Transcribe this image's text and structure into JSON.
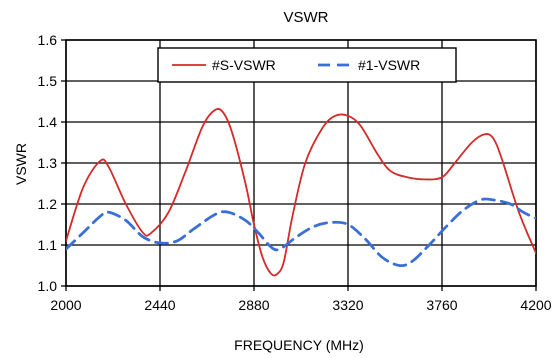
{
  "chart_data": {
    "type": "line",
    "title": "VSWR",
    "xlabel": "FREQUENCY (MHz)",
    "ylabel": "VSWR",
    "xlim": [
      2000,
      4200
    ],
    "ylim": [
      1.0,
      1.6
    ],
    "x_ticks": [
      "2000",
      "2440",
      "2880",
      "3320",
      "3760",
      "4200"
    ],
    "y_ticks": [
      "1.0",
      "1.1",
      "1.2",
      "1.3",
      "1.4",
      "1.5",
      "1.6"
    ],
    "x_tick_values": [
      2000,
      2440,
      2880,
      3320,
      3760,
      4200
    ],
    "y_tick_values": [
      1.0,
      1.1,
      1.2,
      1.3,
      1.4,
      1.5,
      1.6
    ],
    "grid": true,
    "legend_position": "top-center",
    "series": [
      {
        "name": "#S-VSWR",
        "color": "#d42a2a",
        "style": "solid",
        "x": [
          2000,
          2080,
          2160,
          2200,
          2280,
          2360,
          2400,
          2480,
          2560,
          2640,
          2700,
          2740,
          2780,
          2840,
          2880,
          2920,
          2960,
          2990,
          3020,
          3060,
          3120,
          3200,
          3260,
          3320,
          3380,
          3460,
          3520,
          3600,
          3680,
          3760,
          3820,
          3900,
          3960,
          4000,
          4040,
          4120,
          4200
        ],
        "y": [
          1.11,
          1.24,
          1.305,
          1.29,
          1.2,
          1.13,
          1.13,
          1.18,
          1.28,
          1.39,
          1.43,
          1.42,
          1.37,
          1.25,
          1.15,
          1.07,
          1.03,
          1.03,
          1.06,
          1.17,
          1.3,
          1.385,
          1.415,
          1.415,
          1.39,
          1.32,
          1.28,
          1.265,
          1.26,
          1.265,
          1.3,
          1.35,
          1.37,
          1.36,
          1.31,
          1.18,
          1.08
        ]
      },
      {
        "name": "#1-VSWR",
        "color": "#3a6fd8",
        "style": "dashed",
        "x": [
          2000,
          2080,
          2160,
          2200,
          2280,
          2360,
          2440,
          2520,
          2600,
          2700,
          2760,
          2840,
          2900,
          2960,
          3000,
          3080,
          3160,
          3240,
          3320,
          3400,
          3480,
          3560,
          3620,
          3700,
          3780,
          3860,
          3940,
          4000,
          4080,
          4140,
          4200
        ],
        "y": [
          1.09,
          1.13,
          1.17,
          1.18,
          1.16,
          1.12,
          1.105,
          1.11,
          1.14,
          1.175,
          1.18,
          1.16,
          1.13,
          1.095,
          1.09,
          1.12,
          1.145,
          1.155,
          1.15,
          1.115,
          1.07,
          1.05,
          1.06,
          1.1,
          1.145,
          1.185,
          1.21,
          1.21,
          1.2,
          1.18,
          1.165
        ]
      }
    ]
  }
}
